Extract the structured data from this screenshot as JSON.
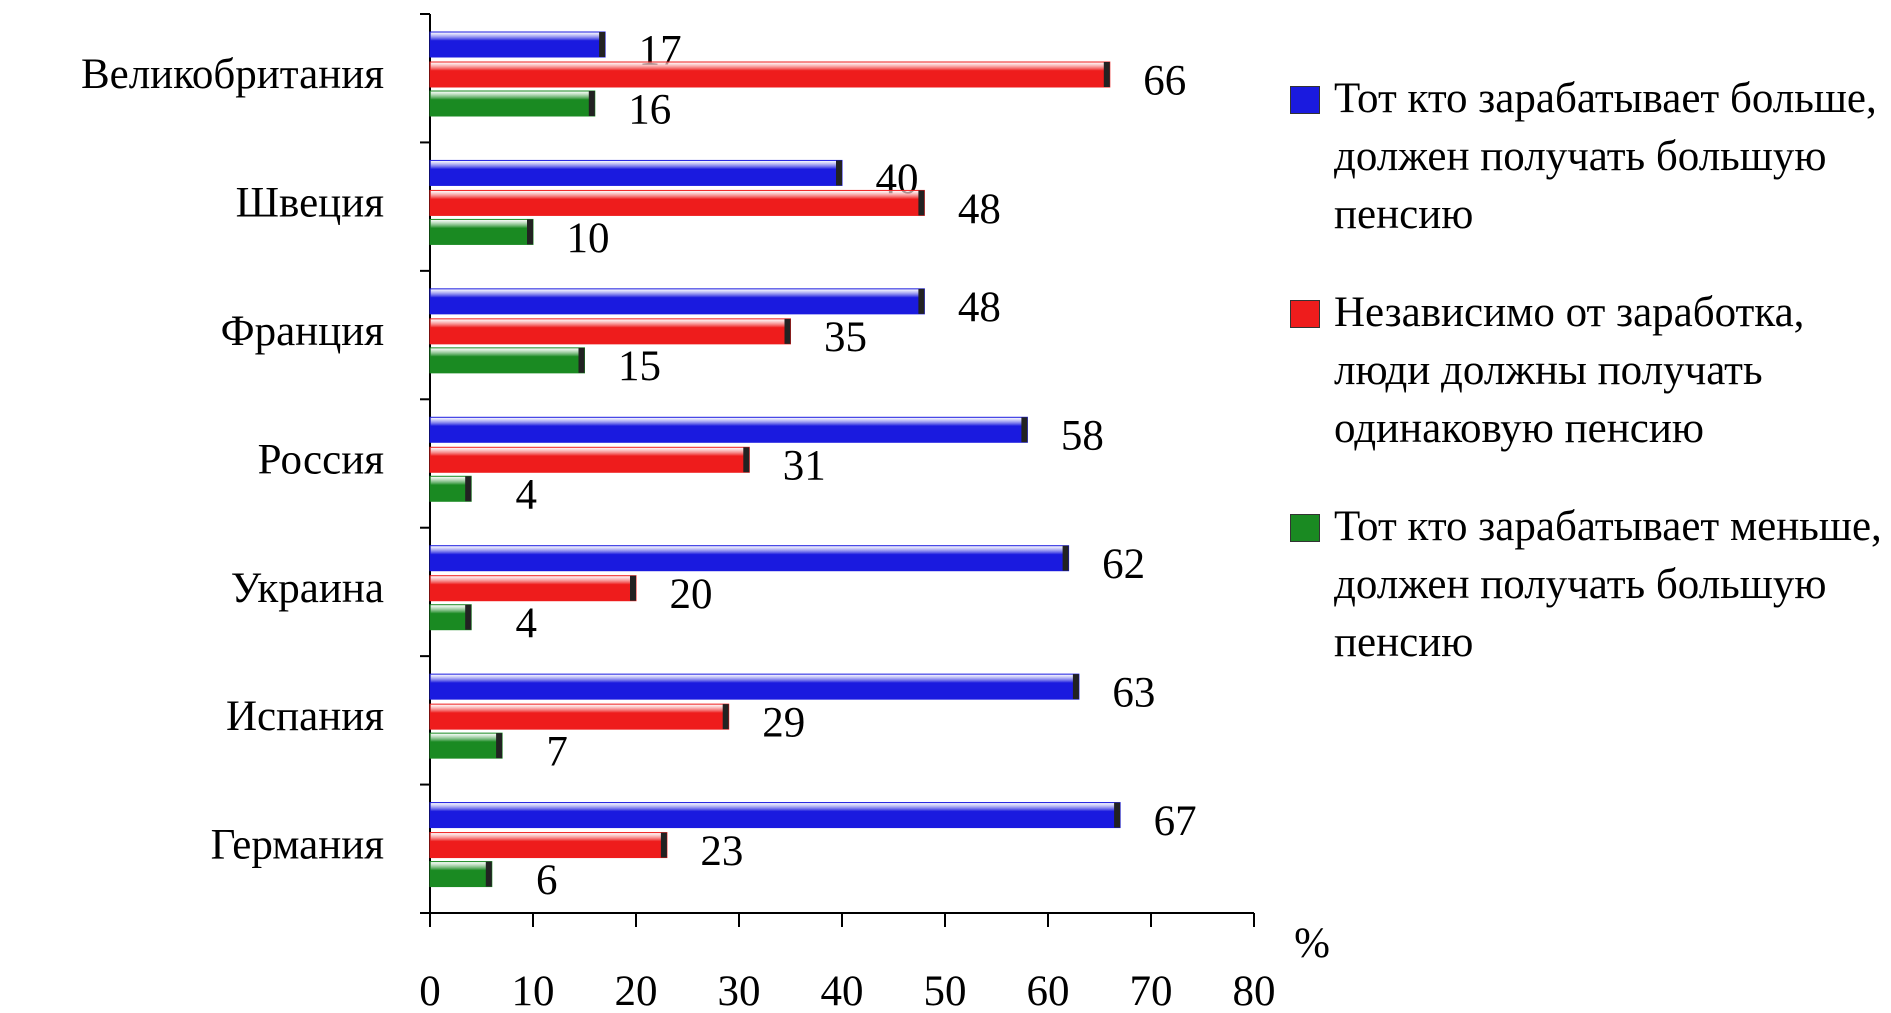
{
  "chart_data": {
    "type": "barh",
    "categories": [
      "Великобритания",
      "Швеция",
      "Франция",
      "Россия",
      "Украина",
      "Испания",
      "Германия"
    ],
    "series": [
      {
        "name": "Тот кто зарабатывает больше, должен получать большую пенсию",
        "color": "#1a1adf",
        "values": [
          17,
          40,
          48,
          58,
          62,
          63,
          67
        ]
      },
      {
        "name": "Независимо от заработка, люди должны получать одинаковую пенсию",
        "color": "#ee1c1c",
        "values": [
          66,
          48,
          35,
          31,
          20,
          29,
          23
        ]
      },
      {
        "name": "Тот кто зарабатывает меньше, должен получать большую пенсию",
        "color": "#1a8a22",
        "values": [
          16,
          10,
          15,
          4,
          4,
          7,
          6
        ]
      }
    ],
    "xlabel": "%",
    "xlim": [
      0,
      80
    ],
    "xticks": [
      0,
      10,
      20,
      30,
      40,
      50,
      60,
      70,
      80
    ]
  }
}
